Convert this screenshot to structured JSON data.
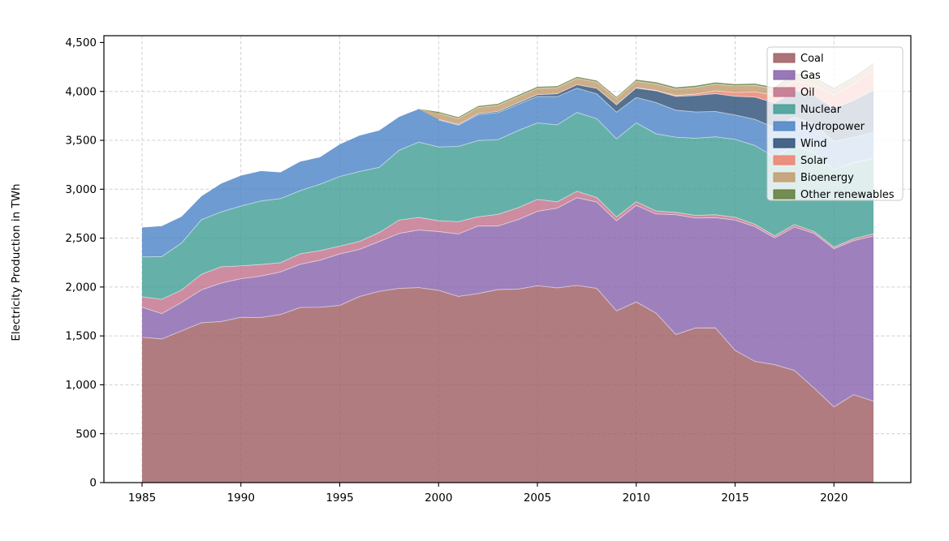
{
  "chart_data": {
    "type": "area",
    "stacked": true,
    "title": "",
    "xlabel": "",
    "ylabel": "Electricity Production in TWh",
    "background": "#ffffff",
    "grid": "dashed",
    "legend_position": "top-right",
    "ylim": [
      0,
      4500
    ],
    "xlim": [
      1983,
      2024
    ],
    "x": [
      1985,
      1986,
      1987,
      1988,
      1989,
      1990,
      1991,
      1992,
      1993,
      1994,
      1995,
      1996,
      1997,
      1998,
      1999,
      2000,
      2001,
      2002,
      2003,
      2004,
      2005,
      2006,
      2007,
      2008,
      2009,
      2010,
      2011,
      2012,
      2013,
      2014,
      2015,
      2016,
      2017,
      2018,
      2019,
      2020,
      2021,
      2022
    ],
    "xticks": {
      "values": [
        1985,
        1990,
        1995,
        2000,
        2005,
        2010,
        2015,
        2020
      ],
      "labels": [
        "1985",
        "1990",
        "1995",
        "2000",
        "2005",
        "2010",
        "2015",
        "2020"
      ]
    },
    "yticks": {
      "values": [
        0,
        500,
        1000,
        1500,
        2000,
        2500,
        3000,
        3500,
        4000,
        4500
      ],
      "labels": [
        "0",
        "500",
        "1,000",
        "1,500",
        "2,000",
        "2,500",
        "3,000",
        "3,500",
        "4,000",
        "4,500"
      ]
    },
    "series": [
      {
        "name": "Coal",
        "color": "#9d5b60",
        "values": [
          1486,
          1469,
          1552,
          1634,
          1647,
          1690,
          1687,
          1718,
          1791,
          1793,
          1812,
          1903,
          1956,
          1986,
          1994,
          1966,
          1904,
          1933,
          1974,
          1978,
          2013,
          1991,
          2016,
          1986,
          1756,
          1847,
          1733,
          1514,
          1581,
          1582,
          1352,
          1239,
          1206,
          1146,
          966,
          774,
          899,
          832
        ]
      },
      {
        "name": "Gas",
        "color": "#8661ab",
        "values": [
          308,
          259,
          290,
          337,
          393,
          395,
          424,
          436,
          442,
          481,
          526,
          482,
          509,
          562,
          589,
          601,
          639,
          691,
          650,
          710,
          761,
          816,
          897,
          883,
          921,
          988,
          1014,
          1226,
          1124,
          1127,
          1333,
          1378,
          1296,
          1468,
          1582,
          1617,
          1575,
          1689
        ]
      },
      {
        "name": "Oil",
        "color": "#c16f88",
        "values": [
          106,
          146,
          127,
          158,
          167,
          131,
          119,
          94,
          106,
          98,
          79,
          81,
          92,
          136,
          128,
          111,
          125,
          94,
          119,
          121,
          122,
          64,
          66,
          46,
          39,
          37,
          30,
          23,
          27,
          30,
          28,
          24,
          21,
          25,
          19,
          17,
          19,
          23
        ]
      },
      {
        "name": "Nuclear",
        "color": "#3f9e94",
        "values": [
          407,
          437,
          482,
          559,
          561,
          612,
          650,
          656,
          646,
          679,
          713,
          715,
          667,
          714,
          771,
          754,
          769,
          780,
          764,
          789,
          782,
          787,
          806,
          806,
          799,
          807,
          790,
          769,
          789,
          797,
          797,
          806,
          805,
          807,
          809,
          790,
          778,
          772
        ]
      },
      {
        "name": "Hydropower",
        "color": "#4a82c6",
        "values": [
          301,
          312,
          268,
          240,
          289,
          311,
          306,
          268,
          297,
          276,
          329,
          368,
          377,
          342,
          338,
          276,
          217,
          264,
          276,
          268,
          270,
          289,
          248,
          255,
          273,
          260,
          319,
          276,
          269,
          259,
          249,
          268,
          300,
          292,
          288,
          291,
          260,
          262
        ]
      },
      {
        "name": "Wind",
        "color": "#2a4d76",
        "values": [
          0,
          0,
          0,
          0,
          0,
          0,
          0,
          0,
          0,
          0,
          0,
          0,
          0,
          0,
          0,
          6,
          7,
          10,
          11,
          14,
          18,
          27,
          35,
          55,
          74,
          95,
          120,
          141,
          168,
          182,
          191,
          227,
          254,
          273,
          295,
          338,
          378,
          434
        ]
      },
      {
        "name": "Solar",
        "color": "#ec7f6d",
        "values": [
          0,
          0,
          0,
          0,
          0,
          0,
          0,
          0,
          0,
          0,
          0,
          0,
          0,
          0,
          0,
          1,
          1,
          1,
          1,
          1,
          1,
          1,
          1,
          1,
          1,
          3,
          5,
          9,
          15,
          29,
          39,
          55,
          78,
          97,
          108,
          132,
          165,
          205
        ]
      },
      {
        "name": "Bioenergy",
        "color": "#c19a6b",
        "values": [
          0,
          0,
          0,
          0,
          0,
          0,
          0,
          0,
          0,
          0,
          0,
          0,
          0,
          0,
          0,
          61,
          60,
          63,
          63,
          64,
          65,
          64,
          65,
          64,
          65,
          67,
          66,
          66,
          68,
          69,
          68,
          66,
          64,
          63,
          60,
          58,
          57,
          55
        ]
      },
      {
        "name": "Other renewables",
        "color": "#5f7a35",
        "values": [
          0,
          0,
          0,
          0,
          0,
          0,
          0,
          0,
          0,
          0,
          0,
          0,
          0,
          0,
          0,
          14,
          14,
          15,
          15,
          15,
          15,
          15,
          15,
          15,
          15,
          16,
          17,
          17,
          17,
          17,
          17,
          17,
          17,
          18,
          17,
          18,
          17,
          17
        ]
      }
    ]
  }
}
